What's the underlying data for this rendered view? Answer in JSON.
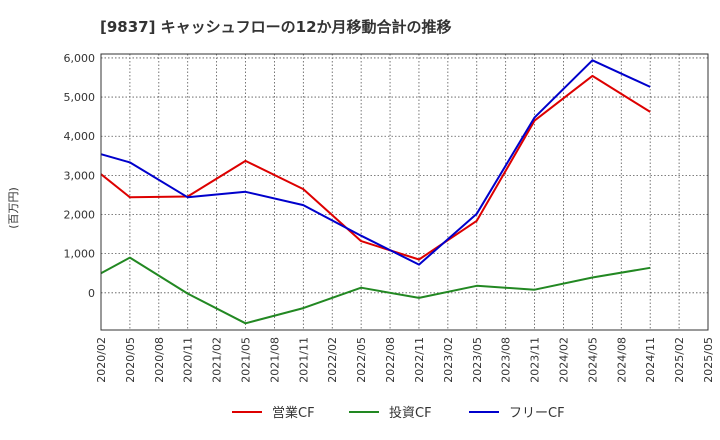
{
  "chart_data": {
    "type": "line",
    "title": "[9837]  キャッシュフローの12か月移動合計の推移",
    "ylabel": "(百万円)",
    "xlabel": "",
    "ylim": [
      -950,
      6100
    ],
    "yticks": [
      0,
      1000,
      2000,
      3000,
      4000,
      5000,
      6000
    ],
    "ytick_labels": [
      "0",
      "1,000",
      "2,000",
      "3,000",
      "4,000",
      "5,000",
      "6,000"
    ],
    "x_categories": [
      "2020/02",
      "2020/05",
      "2020/08",
      "2020/11",
      "2021/02",
      "2021/05",
      "2021/08",
      "2021/11",
      "2022/02",
      "2022/05",
      "2022/08",
      "2022/11",
      "2023/02",
      "2023/05",
      "2023/08",
      "2023/11",
      "2024/02",
      "2024/05",
      "2024/08",
      "2024/11",
      "2025/02",
      "2025/05"
    ],
    "grid": true,
    "legend_position": "bottom",
    "series": [
      {
        "name": "営業CF",
        "color": "#dd0000",
        "x": [
          "2020/02",
          "2020/05",
          "2020/11",
          "2021/05",
          "2021/11",
          "2022/05",
          "2022/11",
          "2023/05",
          "2023/11",
          "2024/05",
          "2024/11"
        ],
        "values": [
          3030,
          2440,
          2460,
          3370,
          2650,
          1320,
          850,
          1840,
          4400,
          5540,
          4620
        ]
      },
      {
        "name": "投資CF",
        "color": "#228822",
        "x": [
          "2020/02",
          "2020/05",
          "2020/11",
          "2021/05",
          "2021/11",
          "2022/05",
          "2022/11",
          "2023/05",
          "2023/11",
          "2024/05",
          "2024/11"
        ],
        "values": [
          500,
          900,
          -20,
          -780,
          -390,
          130,
          -130,
          180,
          80,
          390,
          640
        ]
      },
      {
        "name": "フリーCF",
        "color": "#0000cc",
        "x": [
          "2020/02",
          "2020/05",
          "2020/11",
          "2021/05",
          "2021/11",
          "2022/05",
          "2022/11",
          "2023/05",
          "2023/11",
          "2024/05",
          "2024/11"
        ],
        "values": [
          3540,
          3330,
          2440,
          2580,
          2240,
          1460,
          720,
          2020,
          4480,
          5940,
          5260
        ]
      }
    ]
  }
}
